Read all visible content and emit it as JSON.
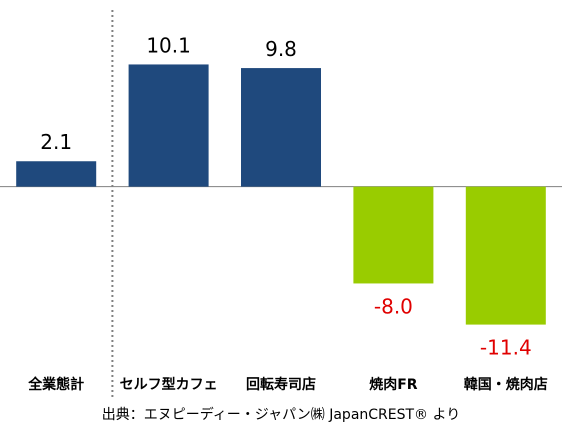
{
  "chart_data": {
    "type": "bar",
    "categories": [
      "全業態計",
      "セルフ型カフェ",
      "回転寿司店",
      "焼肉FR",
      "韓国・焼肉店"
    ],
    "values": [
      2.1,
      10.1,
      9.8,
      -8.0,
      -11.4
    ],
    "value_labels": [
      "2.1",
      "10.1",
      "9.8",
      "-8.0",
      "-11.4"
    ],
    "colors": {
      "positive": "#1f497d",
      "negative": "#99cc00",
      "positive_label": "#000000",
      "negative_label": "#e00000",
      "axis": "#808080",
      "separator": "#808080"
    },
    "separator_after_category": 0,
    "ylim": [
      -13.5,
      14.6
    ],
    "grid": false,
    "legend": "none"
  },
  "source": "出典：エヌピーディー・ジャパン㈱ JapanCREST® より"
}
